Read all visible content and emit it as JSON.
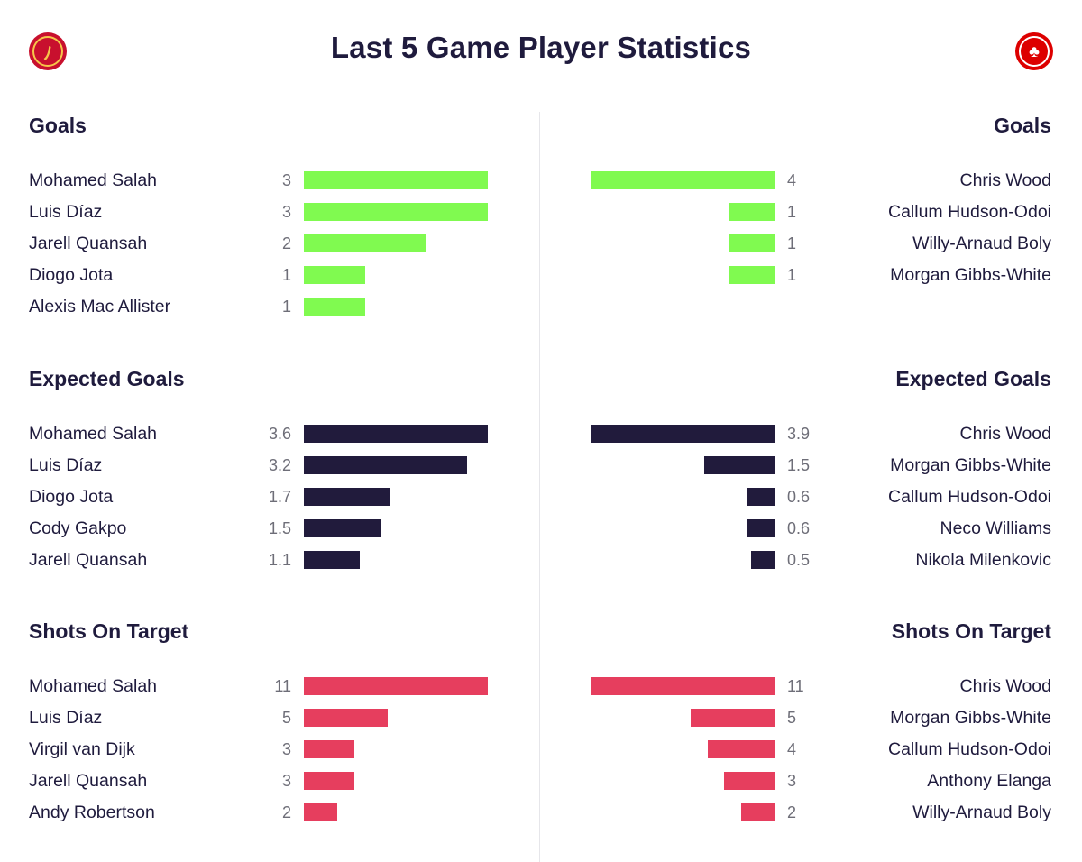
{
  "title": "Last 5 Game Player Statistics",
  "colors": {
    "goals": "#80fa50",
    "xg": "#211b3c",
    "sot": "#e63e5e"
  },
  "badges": {
    "left": "liverpool-crest-icon",
    "right": "nottingham-forest-crest-icon"
  },
  "chart_data": [
    {
      "type": "bar",
      "orientation": "horizontal",
      "title": "Goals",
      "side": "left",
      "categories": [
        "Mohamed Salah",
        "Luis Díaz",
        "Jarell Quansah",
        "Diogo Jota",
        "Alexis Mac Allister"
      ],
      "values": [
        3,
        3,
        2,
        1,
        1
      ],
      "labels": [
        "3",
        "3",
        "2",
        "1",
        "1"
      ],
      "max": 3,
      "color": "#80fa50"
    },
    {
      "type": "bar",
      "orientation": "horizontal",
      "title": "Goals",
      "side": "right",
      "categories": [
        "Chris Wood",
        "Callum Hudson-Odoi",
        "Willy-Arnaud Boly",
        "Morgan Gibbs-White"
      ],
      "values": [
        4,
        1,
        1,
        1
      ],
      "labels": [
        "4",
        "1",
        "1",
        "1"
      ],
      "max": 4,
      "color": "#80fa50"
    },
    {
      "type": "bar",
      "orientation": "horizontal",
      "title": "Expected Goals",
      "side": "left",
      "categories": [
        "Mohamed Salah",
        "Luis Díaz",
        "Diogo Jota",
        "Cody Gakpo",
        "Jarell Quansah"
      ],
      "values": [
        3.6,
        3.2,
        1.7,
        1.5,
        1.1
      ],
      "labels": [
        "3.6",
        "3.2",
        "1.7",
        "1.5",
        "1.1"
      ],
      "max": 3.6,
      "color": "#211b3c"
    },
    {
      "type": "bar",
      "orientation": "horizontal",
      "title": "Expected Goals",
      "side": "right",
      "categories": [
        "Chris Wood",
        "Morgan Gibbs-White",
        "Callum Hudson-Odoi",
        "Neco Williams",
        "Nikola Milenkovic"
      ],
      "values": [
        3.9,
        1.5,
        0.6,
        0.6,
        0.5
      ],
      "labels": [
        "3.9",
        "1.5",
        "0.6",
        "0.6",
        "0.5"
      ],
      "max": 3.9,
      "color": "#211b3c"
    },
    {
      "type": "bar",
      "orientation": "horizontal",
      "title": "Shots On Target",
      "side": "left",
      "categories": [
        "Mohamed Salah",
        "Luis Díaz",
        "Virgil van Dijk",
        "Jarell Quansah",
        "Andy Robertson"
      ],
      "values": [
        11,
        5,
        3,
        3,
        2
      ],
      "labels": [
        "11",
        "5",
        "3",
        "3",
        "2"
      ],
      "max": 11,
      "color": "#e63e5e"
    },
    {
      "type": "bar",
      "orientation": "horizontal",
      "title": "Shots On Target",
      "side": "right",
      "categories": [
        "Chris Wood",
        "Morgan Gibbs-White",
        "Callum Hudson-Odoi",
        "Anthony Elanga",
        "Willy-Arnaud Boly"
      ],
      "values": [
        11,
        5,
        4,
        3,
        2
      ],
      "labels": [
        "11",
        "5",
        "4",
        "3",
        "2"
      ],
      "max": 11,
      "color": "#e63e5e"
    }
  ]
}
